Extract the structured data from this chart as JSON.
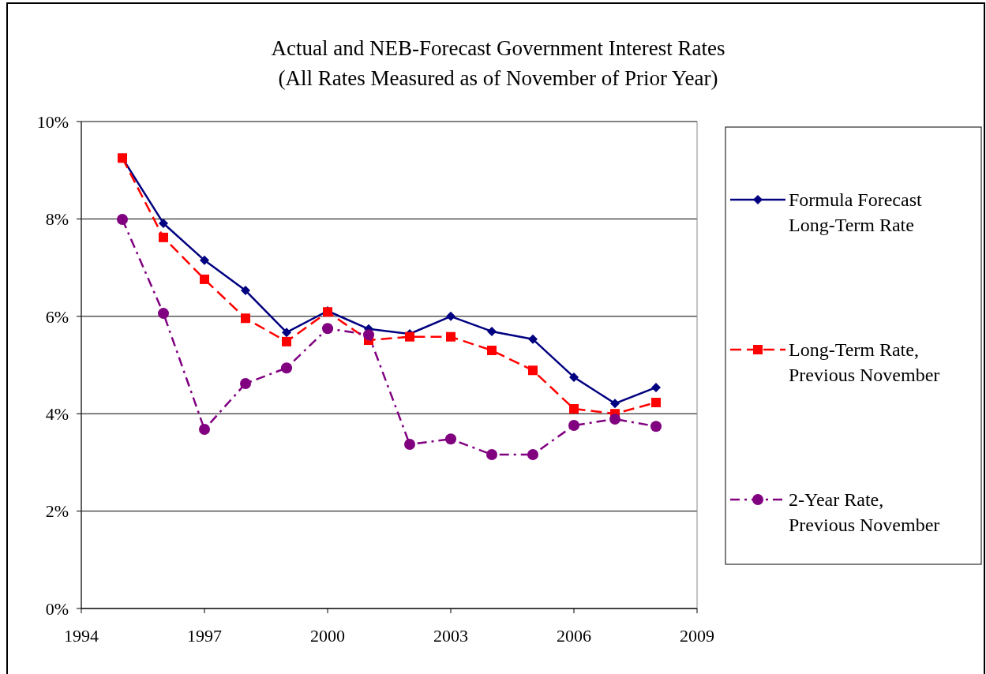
{
  "chart_data": {
    "type": "line",
    "title": "Actual and NEB-Forecast Government Interest Rates",
    "subtitle": "(All Rates Measured as of November of Prior Year)",
    "x": [
      1995,
      1996,
      1997,
      1998,
      1999,
      2000,
      2001,
      2002,
      2003,
      2004,
      2005,
      2006,
      2007,
      2008
    ],
    "series": [
      {
        "name": "Formula Forecast Long-Term Rate",
        "color": "#000080",
        "marker": "diamond",
        "line_style": "solid",
        "values": [
          9.25,
          7.91,
          7.15,
          6.53,
          5.67,
          6.11,
          5.74,
          5.64,
          6.0,
          5.69,
          5.53,
          4.75,
          4.21,
          4.54
        ]
      },
      {
        "name": "Long-Term Rate, Previous November",
        "color": "#ff0000",
        "marker": "square",
        "line_style": "dashed",
        "values": [
          9.25,
          7.62,
          6.76,
          5.96,
          5.48,
          6.09,
          5.51,
          5.58,
          5.58,
          5.3,
          4.89,
          4.1,
          4.0,
          4.23
        ]
      },
      {
        "name": "2-Year Rate, Previous November",
        "color": "#800080",
        "marker": "circle",
        "line_style": "dashed",
        "values": [
          7.99,
          6.06,
          3.68,
          4.62,
          4.94,
          5.75,
          5.62,
          3.37,
          3.48,
          3.16,
          3.16,
          3.76,
          3.89,
          3.74
        ]
      }
    ],
    "xlim": [
      1994,
      2009
    ],
    "xticks": [
      1994,
      1997,
      2000,
      2003,
      2006,
      2009
    ],
    "ylim": [
      0,
      10
    ],
    "yticks": [
      {
        "value": 0,
        "label": "0%"
      },
      {
        "value": 2,
        "label": "2%"
      },
      {
        "value": 4,
        "label": "4%"
      },
      {
        "value": 6,
        "label": "6%"
      },
      {
        "value": 8,
        "label": "8%"
      },
      {
        "value": 10,
        "label": "10%"
      }
    ],
    "grid": "y",
    "legend": "right"
  }
}
